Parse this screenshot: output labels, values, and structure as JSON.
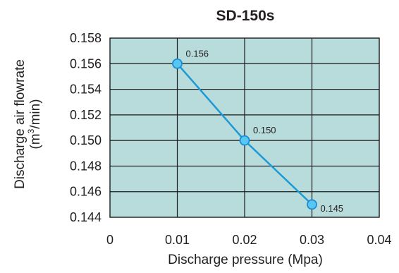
{
  "chart_data": {
    "type": "line",
    "title": "SD-150s",
    "xlabel": "Discharge pressure (Mpa)",
    "ylabel_line1": "Discharge air flowrate",
    "ylabel_line2_prefix": "(m",
    "ylabel_line2_sup": "3",
    "ylabel_line2_suffix": "/min)",
    "xlim": [
      0,
      0.04
    ],
    "ylim": [
      0.144,
      0.158
    ],
    "x_ticks": [
      0,
      0.01,
      0.02,
      0.03,
      0.04
    ],
    "x_tick_labels": [
      "0",
      "0.01",
      "0.02",
      "0.03",
      "0.04"
    ],
    "y_ticks": [
      0.144,
      0.146,
      0.148,
      0.15,
      0.152,
      0.154,
      0.156,
      0.158
    ],
    "y_tick_labels": [
      "0.144",
      "0.146",
      "0.148",
      "0.150",
      "0.152",
      "0.154",
      "0.156",
      "0.158"
    ],
    "grid": true,
    "series": [
      {
        "x": [
          0.01,
          0.02,
          0.03
        ],
        "y": [
          0.156,
          0.15,
          0.145
        ],
        "labels": [
          "0.156",
          "0.150",
          "0.145"
        ]
      }
    ],
    "colors": {
      "plot_background": "#b8dbdb",
      "grid": "#1a1a1a",
      "line": "#1c9ad6",
      "marker_fill": "#58c6f2",
      "marker_stroke": "#1c8ed0",
      "text": "#231f20"
    }
  }
}
